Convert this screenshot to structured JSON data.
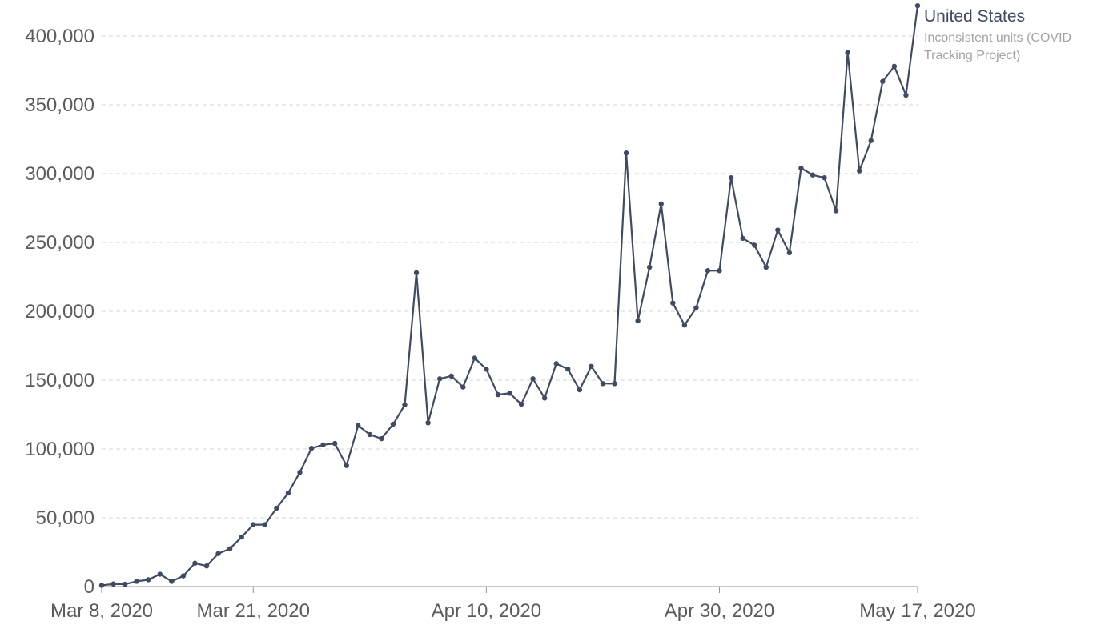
{
  "chart_data": {
    "type": "line",
    "title": "",
    "xlabel": "",
    "ylabel": "",
    "x_ticks": [
      "Mar 8, 2020",
      "Mar 21, 2020",
      "Apr 10, 2020",
      "Apr 30, 2020",
      "May 17, 2020"
    ],
    "y_ticks": [
      "0",
      "50,000",
      "100,000",
      "150,000",
      "200,000",
      "250,000",
      "300,000",
      "350,000",
      "400,000"
    ],
    "ylim": [
      0,
      420000
    ],
    "xlim": [
      "2020-03-08",
      "2020-05-17"
    ],
    "grid": true,
    "series": [
      {
        "name": "United States",
        "subtitle_line1": "Inconsistent units (COVID",
        "subtitle_line2": "Tracking Project)",
        "color": "#3f4b62",
        "x": [
          "2020-03-08",
          "2020-03-09",
          "2020-03-10",
          "2020-03-11",
          "2020-03-12",
          "2020-03-13",
          "2020-03-14",
          "2020-03-15",
          "2020-03-16",
          "2020-03-17",
          "2020-03-18",
          "2020-03-19",
          "2020-03-20",
          "2020-03-21",
          "2020-03-22",
          "2020-03-23",
          "2020-03-24",
          "2020-03-25",
          "2020-03-26",
          "2020-03-27",
          "2020-03-28",
          "2020-03-29",
          "2020-03-30",
          "2020-03-31",
          "2020-04-01",
          "2020-04-02",
          "2020-04-03",
          "2020-04-04",
          "2020-04-05",
          "2020-04-06",
          "2020-04-07",
          "2020-04-08",
          "2020-04-09",
          "2020-04-10",
          "2020-04-11",
          "2020-04-12",
          "2020-04-13",
          "2020-04-14",
          "2020-04-15",
          "2020-04-16",
          "2020-04-17",
          "2020-04-18",
          "2020-04-19",
          "2020-04-20",
          "2020-04-21",
          "2020-04-22",
          "2020-04-23",
          "2020-04-24",
          "2020-04-25",
          "2020-04-26",
          "2020-04-27",
          "2020-04-28",
          "2020-04-29",
          "2020-04-30",
          "2020-05-01",
          "2020-05-02",
          "2020-05-03",
          "2020-05-04",
          "2020-05-05",
          "2020-05-06",
          "2020-05-07",
          "2020-05-08",
          "2020-05-09",
          "2020-05-10",
          "2020-05-11",
          "2020-05-12",
          "2020-05-13",
          "2020-05-14",
          "2020-05-15",
          "2020-05-16",
          "2020-05-17"
        ],
        "values": [
          900,
          1900,
          1700,
          3800,
          5000,
          9000,
          3800,
          7800,
          17000,
          15000,
          24000,
          27500,
          36000,
          45000,
          45000,
          57000,
          68000,
          83000,
          100500,
          103000,
          104000,
          88000,
          117000,
          110500,
          107500,
          118000,
          132000,
          228000,
          119000,
          151000,
          153000,
          145000,
          166000,
          158000,
          139500,
          140500,
          132500,
          151000,
          137000,
          162000,
          158000,
          143000,
          160000,
          147500,
          147500,
          315000,
          193000,
          232000,
          278000,
          206000,
          190000,
          202500,
          229500,
          229500,
          297000,
          253000,
          248000,
          232000,
          259000,
          242500,
          304000,
          299000,
          297000,
          273000,
          388000,
          302000,
          324000,
          367000,
          378000,
          357000,
          422000
        ]
      }
    ]
  }
}
